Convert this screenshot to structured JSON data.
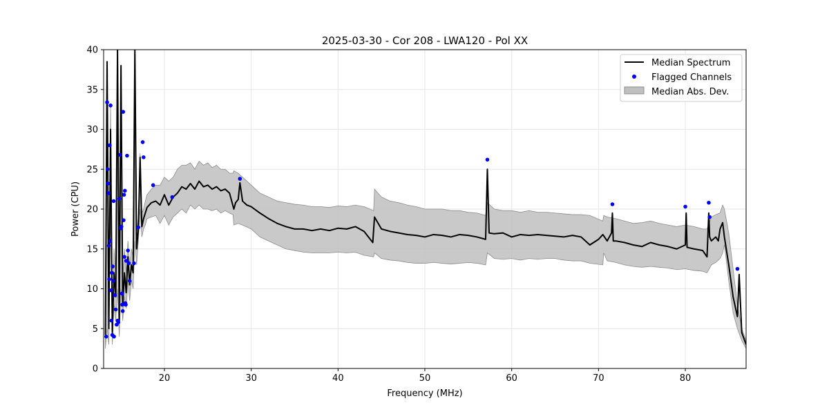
{
  "chart_data": {
    "type": "line",
    "title": "2025-03-30 - Cor 208 - LWA120 - Pol XX",
    "xlabel": "Frequency (MHz)",
    "ylabel": "Power (CPU)",
    "xlim": [
      13,
      87
    ],
    "ylim": [
      0,
      40
    ],
    "x_ticks": [
      20,
      30,
      40,
      50,
      60,
      70,
      80
    ],
    "y_ticks": [
      0,
      5,
      10,
      15,
      20,
      25,
      30,
      35,
      40
    ],
    "grid": true,
    "legend_position": "top-right",
    "legend": [
      "Median Spectrum",
      "Flagged Channels",
      "Median Abs. Dev."
    ],
    "colors": {
      "median": "#000000",
      "flagged": "#0000ff",
      "mad_fill": "#bfbfbf",
      "mad_edge": "#8c8c8c",
      "grid": "#e6e6e6"
    },
    "series": [
      {
        "name": "Median Spectrum",
        "x": [
          13.2,
          13.4,
          13.6,
          13.8,
          14.0,
          14.2,
          14.4,
          14.6,
          14.8,
          15.0,
          15.2,
          15.4,
          15.6,
          15.8,
          16.0,
          16.2,
          16.4,
          16.6,
          16.8,
          17.0,
          17.2,
          17.4,
          17.6,
          17.8,
          18.0,
          18.5,
          19.0,
          19.5,
          20.0,
          20.5,
          21.0,
          21.5,
          22.0,
          22.5,
          23.0,
          23.5,
          24.0,
          24.5,
          25.0,
          25.5,
          26.0,
          26.5,
          27.0,
          27.5,
          28.0,
          28.2,
          28.5,
          28.7,
          29.0,
          29.5,
          30.0,
          31.0,
          32.0,
          33.0,
          34.0,
          35.0,
          36.0,
          37.0,
          38.0,
          39.0,
          40.0,
          41.0,
          42.0,
          43.0,
          44.0,
          44.2,
          45.0,
          46.0,
          47.0,
          48.0,
          49.0,
          50.0,
          51.0,
          52.0,
          53.0,
          54.0,
          55.0,
          56.0,
          57.0,
          57.2,
          57.4,
          58.0,
          59.0,
          60.0,
          61.0,
          62.0,
          63.0,
          64.0,
          65.0,
          66.0,
          67.0,
          68.0,
          69.0,
          70.0,
          70.5,
          71.0,
          71.5,
          71.6,
          71.7,
          72.0,
          73.0,
          74.0,
          75.0,
          76.0,
          77.0,
          78.0,
          79.0,
          80.0,
          80.1,
          80.2,
          81.0,
          82.0,
          82.5,
          82.7,
          82.8,
          83.0,
          83.5,
          83.8,
          84.0,
          84.3,
          84.5,
          85.0,
          85.5,
          86.0,
          86.2,
          86.5,
          87.0
        ],
        "values": [
          4.2,
          38.5,
          5.0,
          30.0,
          4.5,
          12.0,
          9.0,
          40.0,
          6.0,
          38.0,
          8.0,
          12.0,
          9.5,
          14.0,
          10.5,
          13.0,
          12.0,
          40.0,
          15.0,
          17.5,
          26.5,
          17.8,
          18.8,
          19.5,
          20.2,
          20.8,
          21.0,
          20.5,
          21.8,
          20.5,
          21.5,
          22.0,
          22.8,
          22.5,
          23.2,
          22.5,
          23.5,
          22.8,
          23.0,
          22.5,
          22.8,
          22.3,
          22.5,
          22.0,
          20.0,
          20.8,
          21.2,
          23.3,
          21.0,
          20.5,
          20.3,
          19.5,
          18.8,
          18.2,
          17.8,
          17.5,
          17.5,
          17.3,
          17.5,
          17.3,
          17.6,
          17.5,
          17.8,
          17.2,
          15.8,
          19.0,
          17.5,
          17.2,
          17.0,
          16.8,
          16.7,
          16.5,
          16.8,
          16.7,
          16.5,
          16.8,
          16.7,
          16.5,
          16.2,
          25.0,
          17.0,
          16.9,
          17.0,
          16.5,
          16.8,
          16.7,
          16.8,
          16.7,
          16.6,
          16.5,
          16.7,
          16.5,
          15.5,
          16.2,
          16.8,
          16.0,
          17.0,
          19.5,
          16.0,
          16.0,
          15.8,
          15.5,
          15.3,
          15.8,
          15.5,
          15.3,
          15.0,
          15.5,
          19.5,
          15.2,
          15.0,
          14.8,
          14.0,
          19.5,
          16.5,
          16.0,
          16.5,
          16.0,
          17.5,
          18.3,
          16.5,
          13.0,
          9.0,
          6.5,
          11.8,
          4.5,
          3.0
        ]
      }
    ],
    "band": {
      "name": "Median Abs. Dev.",
      "x": [
        13.2,
        13.4,
        13.6,
        13.8,
        14.0,
        14.2,
        14.4,
        14.6,
        14.8,
        15.0,
        15.2,
        15.4,
        15.6,
        15.8,
        16.0,
        16.2,
        16.4,
        16.6,
        16.8,
        17.0,
        17.2,
        17.4,
        17.6,
        17.8,
        18.0,
        18.5,
        19.0,
        19.5,
        20.0,
        20.5,
        21.0,
        21.5,
        22.0,
        22.5,
        23.0,
        23.5,
        24.0,
        24.5,
        25.0,
        25.5,
        26.0,
        26.5,
        27.0,
        27.5,
        27.9,
        28.0,
        28.5,
        29.0,
        30.0,
        31.0,
        32.0,
        33.0,
        34.0,
        35.0,
        36.0,
        37.0,
        38.0,
        39.0,
        40.0,
        41.0,
        42.0,
        43.0,
        44.1,
        44.2,
        45.0,
        46.0,
        47.0,
        48.0,
        49.0,
        50.0,
        51.0,
        52.0,
        53.0,
        54.0,
        55.0,
        56.0,
        57.0,
        57.2,
        58.0,
        59.0,
        60.0,
        61.0,
        62.0,
        63.0,
        64.0,
        65.0,
        66.0,
        67.0,
        68.0,
        69.0,
        70.5,
        70.6,
        71.0,
        72.0,
        73.0,
        74.0,
        75.0,
        76.0,
        77.0,
        78.0,
        79.0,
        80.0,
        81.0,
        82.0,
        82.5,
        83.0,
        83.5,
        84.0,
        84.3,
        84.5,
        85.0,
        85.5,
        86.0,
        86.5,
        87.0
      ],
      "upper": [
        6.0,
        37.0,
        8.0,
        33.0,
        7.0,
        15.0,
        12.0,
        39.0,
        9.0,
        37.0,
        11.0,
        15.0,
        12.0,
        16.0,
        13.0,
        15.0,
        14.0,
        39.0,
        17.0,
        19.0,
        27.0,
        19.5,
        20.0,
        21.0,
        21.8,
        22.5,
        23.0,
        23.0,
        24.0,
        23.5,
        24.0,
        25.0,
        25.5,
        25.5,
        25.8,
        25.0,
        26.0,
        25.5,
        25.8,
        25.2,
        25.5,
        25.0,
        25.0,
        24.5,
        24.5,
        24.8,
        24.5,
        24.0,
        23.0,
        22.0,
        21.5,
        21.0,
        20.8,
        20.6,
        20.5,
        20.3,
        20.3,
        20.2,
        20.4,
        20.3,
        20.5,
        20.3,
        19.8,
        22.5,
        21.5,
        21.0,
        20.8,
        20.5,
        20.3,
        20.0,
        20.0,
        20.0,
        19.8,
        19.8,
        19.6,
        19.5,
        19.2,
        20.8,
        20.0,
        19.8,
        19.8,
        19.6,
        19.8,
        19.6,
        19.6,
        19.5,
        19.4,
        19.3,
        19.3,
        19.2,
        18.5,
        19.2,
        19.0,
        18.8,
        18.5,
        18.2,
        18.3,
        18.5,
        18.2,
        18.0,
        17.8,
        18.0,
        17.8,
        17.5,
        17.5,
        19.0,
        19.3,
        19.5,
        20.5,
        20.0,
        17.0,
        12.5,
        8.0,
        5.0,
        3.5
      ],
      "lower": [
        2.5,
        5.0,
        3.0,
        20.0,
        3.0,
        8.0,
        6.0,
        10.0,
        4.0,
        10.0,
        6.0,
        9.0,
        7.5,
        11.0,
        8.5,
        11.0,
        10.0,
        16.0,
        13.0,
        16.0,
        20.0,
        16.5,
        17.5,
        18.0,
        18.8,
        19.0,
        19.2,
        18.2,
        19.2,
        18.0,
        19.0,
        19.5,
        20.0,
        19.5,
        20.5,
        20.0,
        20.5,
        20.0,
        20.0,
        19.8,
        20.0,
        19.5,
        19.8,
        19.5,
        19.3,
        18.0,
        18.2,
        18.0,
        17.5,
        16.5,
        16.0,
        15.5,
        15.0,
        14.8,
        14.6,
        14.5,
        14.5,
        14.5,
        14.6,
        14.5,
        14.6,
        14.2,
        14.0,
        14.5,
        13.8,
        13.6,
        13.5,
        13.3,
        13.2,
        13.2,
        13.3,
        13.2,
        13.1,
        13.2,
        13.3,
        13.2,
        13.0,
        14.5,
        13.8,
        13.7,
        13.8,
        13.6,
        13.8,
        13.7,
        13.8,
        13.8,
        13.6,
        13.5,
        13.5,
        13.2,
        13.0,
        14.5,
        13.5,
        13.3,
        13.0,
        12.8,
        12.7,
        12.8,
        12.7,
        12.6,
        12.4,
        12.5,
        12.3,
        12.2,
        12.0,
        13.0,
        13.3,
        13.8,
        14.5,
        15.5,
        11.0,
        7.0,
        5.0,
        3.5,
        2.5
      ]
    },
    "flagged": {
      "name": "Flagged Channels",
      "x": [
        13.3,
        13.4,
        13.45,
        13.5,
        13.55,
        13.6,
        13.65,
        13.7,
        13.75,
        13.8,
        13.85,
        13.9,
        13.95,
        14.0,
        14.05,
        14.1,
        14.15,
        14.2,
        14.3,
        14.4,
        14.5,
        14.6,
        14.7,
        14.8,
        14.9,
        15.0,
        15.05,
        15.1,
        15.15,
        15.2,
        15.25,
        15.3,
        15.35,
        15.4,
        15.45,
        15.5,
        15.55,
        15.6,
        15.7,
        15.8,
        15.9,
        16.0,
        16.5,
        17.0,
        17.5,
        17.6,
        18.7,
        20.9,
        28.7,
        57.2,
        71.6,
        80.0,
        82.7,
        82.8,
        86.0
      ],
      "values": [
        4.0,
        33.4,
        25.0,
        23.2,
        22.0,
        15.4,
        11.2,
        28.0,
        16.0,
        33.0,
        9.8,
        6.0,
        12.0,
        4.2,
        12.8,
        11.0,
        21.0,
        4.0,
        9.2,
        7.4,
        5.5,
        6.0,
        5.8,
        21.3,
        26.8,
        17.6,
        17.8,
        9.4,
        8.0,
        7.2,
        32.2,
        18.6,
        21.8,
        14.0,
        22.3,
        8.2,
        8.0,
        13.5,
        26.7,
        14.8,
        13.2,
        11.0,
        13.2,
        17.7,
        28.4,
        26.5,
        23.0,
        21.5,
        23.8,
        26.2,
        20.6,
        20.3,
        20.8,
        19.0,
        12.5
      ]
    }
  }
}
